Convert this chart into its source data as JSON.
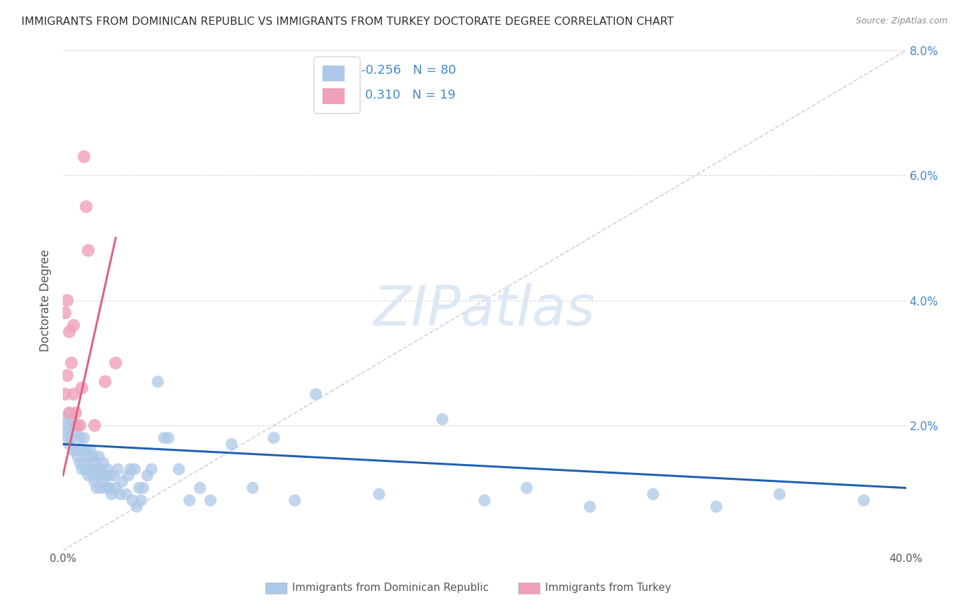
{
  "title": "IMMIGRANTS FROM DOMINICAN REPUBLIC VS IMMIGRANTS FROM TURKEY DOCTORATE DEGREE CORRELATION CHART",
  "source": "Source: ZipAtlas.com",
  "ylabel": "Doctorate Degree",
  "watermark": "ZIPatlas",
  "legend_r_blue": "-0.256",
  "legend_n_blue": "80",
  "legend_r_pink": "0.310",
  "legend_n_pink": "19",
  "blue_scatter_x": [
    0.001,
    0.001,
    0.002,
    0.002,
    0.003,
    0.003,
    0.004,
    0.004,
    0.005,
    0.005,
    0.006,
    0.006,
    0.007,
    0.008,
    0.008,
    0.009,
    0.009,
    0.01,
    0.01,
    0.011,
    0.011,
    0.012,
    0.012,
    0.013,
    0.013,
    0.014,
    0.014,
    0.015,
    0.015,
    0.016,
    0.016,
    0.017,
    0.017,
    0.018,
    0.018,
    0.019,
    0.019,
    0.02,
    0.021,
    0.021,
    0.022,
    0.022,
    0.023,
    0.024,
    0.025,
    0.026,
    0.027,
    0.028,
    0.03,
    0.031,
    0.032,
    0.033,
    0.034,
    0.035,
    0.036,
    0.037,
    0.038,
    0.04,
    0.042,
    0.045,
    0.048,
    0.05,
    0.055,
    0.06,
    0.065,
    0.07,
    0.08,
    0.09,
    0.1,
    0.11,
    0.12,
    0.15,
    0.18,
    0.2,
    0.22,
    0.25,
    0.28,
    0.31,
    0.34,
    0.38
  ],
  "blue_scatter_y": [
    0.019,
    0.021,
    0.018,
    0.02,
    0.017,
    0.022,
    0.018,
    0.021,
    0.016,
    0.02,
    0.016,
    0.019,
    0.015,
    0.014,
    0.018,
    0.013,
    0.016,
    0.014,
    0.018,
    0.013,
    0.016,
    0.012,
    0.015,
    0.013,
    0.016,
    0.012,
    0.015,
    0.011,
    0.014,
    0.013,
    0.01,
    0.012,
    0.015,
    0.01,
    0.013,
    0.011,
    0.014,
    0.012,
    0.01,
    0.013,
    0.01,
    0.012,
    0.009,
    0.012,
    0.01,
    0.013,
    0.009,
    0.011,
    0.009,
    0.012,
    0.013,
    0.008,
    0.013,
    0.007,
    0.01,
    0.008,
    0.01,
    0.012,
    0.013,
    0.027,
    0.018,
    0.018,
    0.013,
    0.008,
    0.01,
    0.008,
    0.017,
    0.01,
    0.018,
    0.008,
    0.025,
    0.009,
    0.021,
    0.008,
    0.01,
    0.007,
    0.009,
    0.007,
    0.009,
    0.008
  ],
  "pink_scatter_x": [
    0.001,
    0.001,
    0.002,
    0.002,
    0.003,
    0.003,
    0.004,
    0.005,
    0.005,
    0.006,
    0.007,
    0.008,
    0.009,
    0.01,
    0.011,
    0.012,
    0.015,
    0.02,
    0.025
  ],
  "pink_scatter_y": [
    0.025,
    0.038,
    0.028,
    0.04,
    0.035,
    0.022,
    0.03,
    0.025,
    0.036,
    0.022,
    0.02,
    0.02,
    0.026,
    0.063,
    0.055,
    0.048,
    0.02,
    0.027,
    0.03
  ],
  "blue_line_x": [
    0.0,
    0.4
  ],
  "blue_line_y": [
    0.017,
    0.01
  ],
  "pink_line_x": [
    0.0,
    0.025
  ],
  "pink_line_y": [
    0.012,
    0.05
  ],
  "diag_line_x": [
    0.0,
    0.4
  ],
  "diag_line_y": [
    0.0,
    0.08
  ],
  "ylim": [
    0.0,
    0.08
  ],
  "xlim": [
    0.0,
    0.4
  ],
  "yticks": [
    0.0,
    0.02,
    0.04,
    0.06,
    0.08
  ],
  "ytick_labels_right": [
    "",
    "2.0%",
    "4.0%",
    "6.0%",
    "8.0%"
  ],
  "xticks": [
    0.0,
    0.1,
    0.2,
    0.3,
    0.4
  ],
  "xtick_labels": [
    "0.0%",
    "",
    "",
    "",
    "40.0%"
  ],
  "blue_color": "#adc8e8",
  "blue_line_color": "#2060b0",
  "pink_color": "#f0a0b8",
  "pink_line_color": "#e06080",
  "diag_color": "#c0c8d0",
  "grid_color": "#d8d8d8",
  "title_color": "#303030",
  "right_axis_color": "#4488cc",
  "legend_text_color": "#4488cc",
  "watermark_color": "#dce8f5",
  "source_color": "#888888",
  "bottom_label_color": "#555555",
  "legend_label_blue": "Immigrants from Dominican Republic",
  "legend_label_pink": "Immigrants from Turkey"
}
